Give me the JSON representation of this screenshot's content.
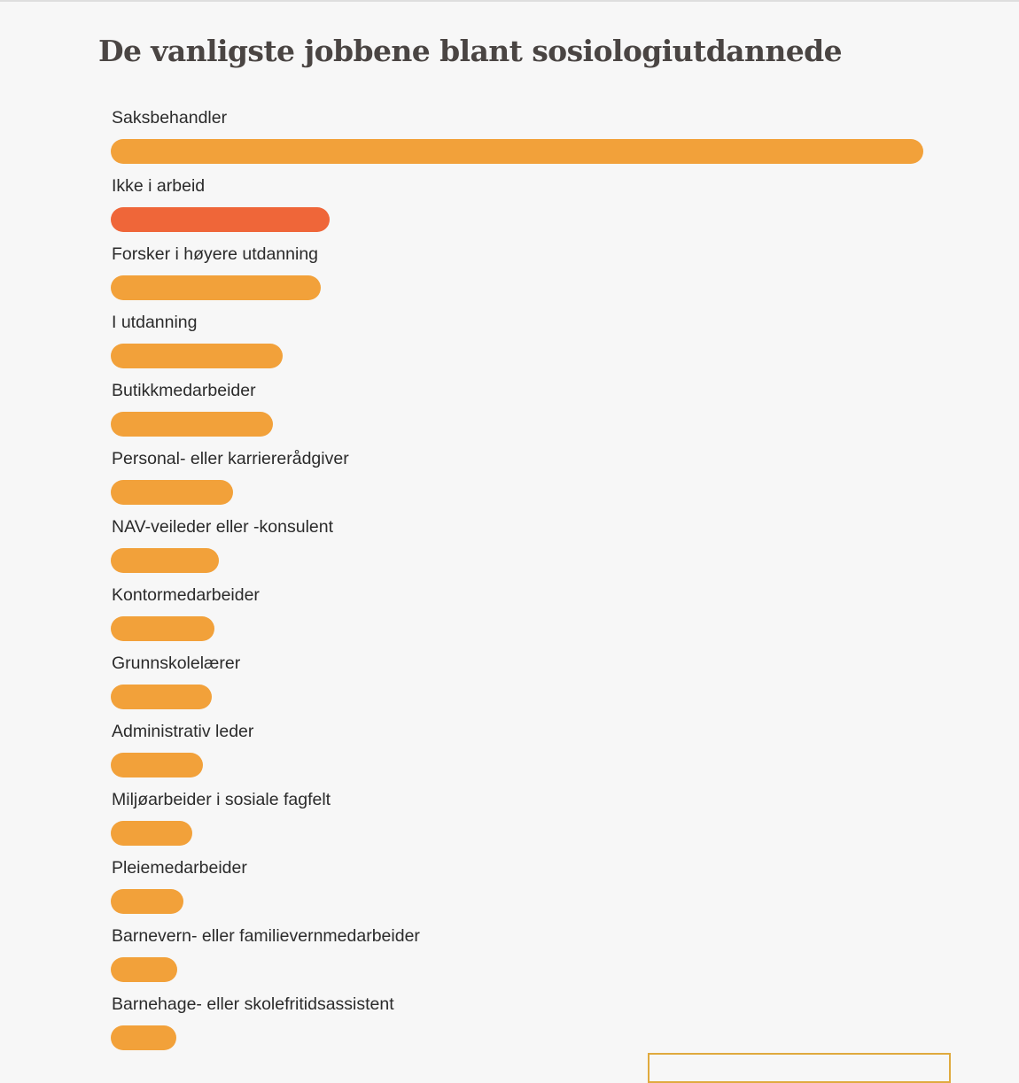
{
  "chart_data": {
    "type": "bar",
    "orientation": "horizontal",
    "title": "De vanligste jobbene blant sosiologiutdannede",
    "categories": [
      "Saksbehandler",
      "Ikke i arbeid",
      "Forsker i høyere utdanning",
      "I utdanning",
      "Butikkmedarbeider",
      "Personal- eller karriererådgiver",
      "NAV-veileder eller -konsulent",
      "Kontormedarbeider",
      "Grunnskolelærer",
      "Administrativ leder",
      "Miljøarbeider i sosiale fagfelt",
      "Pleiemedarbeider",
      "Barnevern- eller familievernmedarbeider",
      "Barnehage- eller skolefritidsassistent"
    ],
    "values": [
      100,
      26.9,
      25.8,
      21.2,
      20.0,
      15.0,
      13.3,
      12.8,
      12.4,
      11.3,
      10.0,
      8.9,
      8.2,
      8.1
    ],
    "xlim": [
      0,
      100
    ],
    "grid": false,
    "legend": "none",
    "colors": {
      "default": "#f2a13a",
      "highlight": "#ef6639"
    },
    "highlight_index": 1
  }
}
